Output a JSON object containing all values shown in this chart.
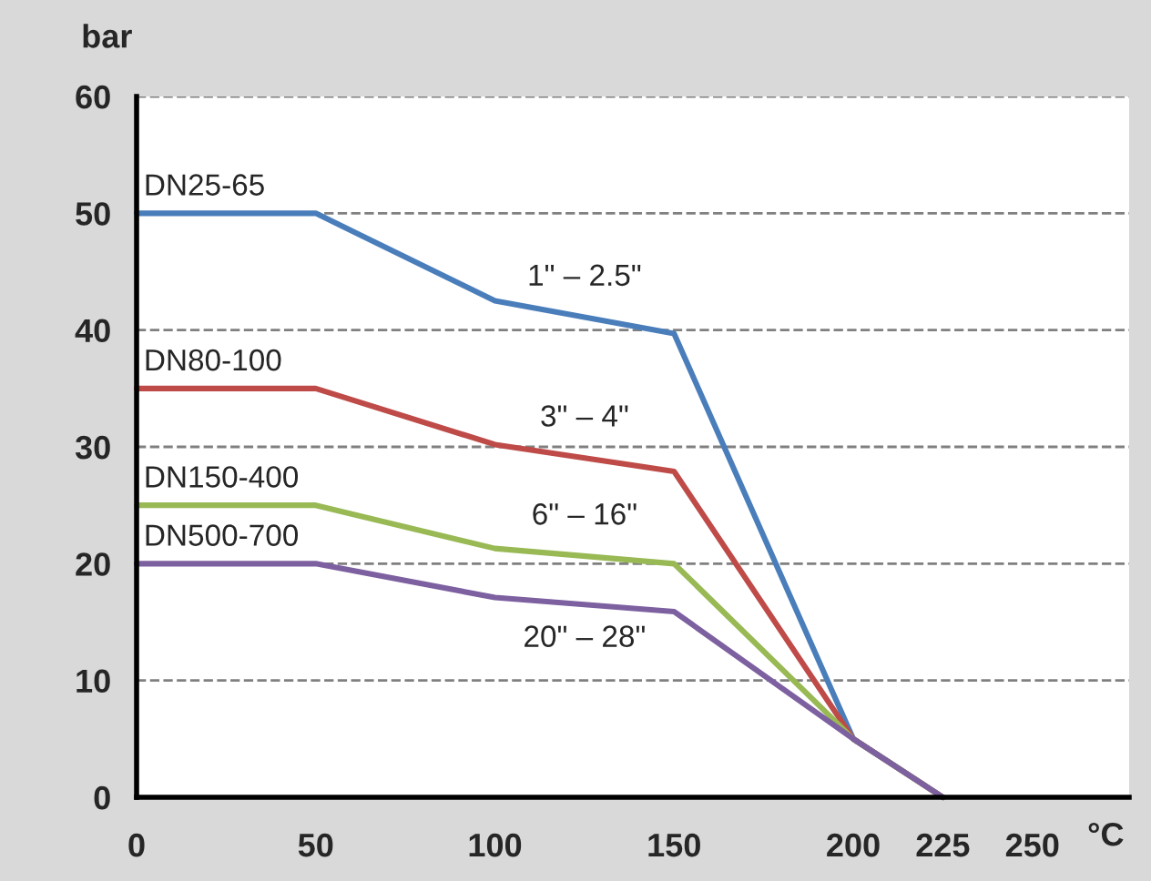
{
  "chart_data": {
    "type": "line",
    "xlabel": "°C",
    "ylabel": "bar",
    "x": [
      0,
      50,
      100,
      150,
      200,
      225
    ],
    "series": [
      {
        "name": "DN25-65",
        "color": "#4a7ebb",
        "values": [
          50,
          50,
          42.5,
          39.7,
          5,
          0
        ]
      },
      {
        "name": "DN80-100",
        "color": "#be4b48",
        "values": [
          35,
          35,
          30.2,
          27.9,
          5,
          0
        ]
      },
      {
        "name": "DN150-400",
        "color": "#98b954",
        "values": [
          25,
          25,
          21.3,
          20,
          5,
          0
        ]
      },
      {
        "name": "DN500-700",
        "color": "#7d60a0",
        "values": [
          20,
          20,
          17.1,
          15.9,
          5,
          0
        ]
      }
    ],
    "annotations": [
      "1\" – 2.5\"",
      "3\" – 4\"",
      "6\" – 16\"",
      "20\" – 28\""
    ],
    "xlim": [
      0,
      277
    ],
    "ylim": [
      0,
      60
    ],
    "xticks": [
      0,
      50,
      100,
      150,
      200,
      225,
      250
    ],
    "yticks": [
      0,
      10,
      20,
      30,
      40,
      50,
      60
    ],
    "grid": "y",
    "legend": false,
    "marker": "none",
    "line_style": "solid"
  }
}
